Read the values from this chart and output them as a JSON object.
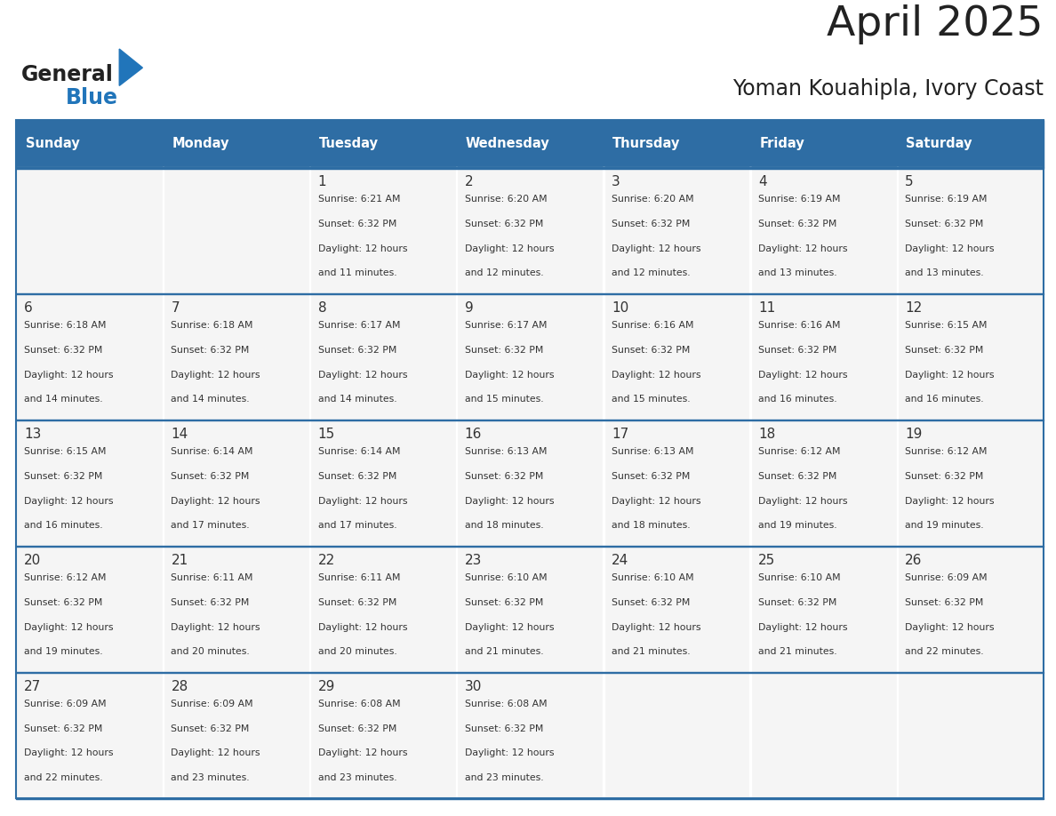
{
  "title": "April 2025",
  "subtitle": "Yoman Kouahipla, Ivory Coast",
  "header_bg": "#2E6DA4",
  "header_text_color": "#FFFFFF",
  "cell_bg": "#F5F5F5",
  "cell_bg_white": "#FFFFFF",
  "row_separator_color": "#2E6DA4",
  "border_color": "#2E6DA4",
  "text_color": "#333333",
  "day_names": [
    "Sunday",
    "Monday",
    "Tuesday",
    "Wednesday",
    "Thursday",
    "Friday",
    "Saturday"
  ],
  "logo_text_color": "#222222",
  "logo_blue_color": "#2175BA",
  "title_color": "#222222",
  "calendar": [
    [
      {
        "day": "",
        "sunrise": "",
        "sunset": "",
        "daylight": ""
      },
      {
        "day": "",
        "sunrise": "",
        "sunset": "",
        "daylight": ""
      },
      {
        "day": "1",
        "sunrise": "6:21 AM",
        "sunset": "6:32 PM",
        "daylight": "12 hours and 11 minutes."
      },
      {
        "day": "2",
        "sunrise": "6:20 AM",
        "sunset": "6:32 PM",
        "daylight": "12 hours and 12 minutes."
      },
      {
        "day": "3",
        "sunrise": "6:20 AM",
        "sunset": "6:32 PM",
        "daylight": "12 hours and 12 minutes."
      },
      {
        "day": "4",
        "sunrise": "6:19 AM",
        "sunset": "6:32 PM",
        "daylight": "12 hours and 13 minutes."
      },
      {
        "day": "5",
        "sunrise": "6:19 AM",
        "sunset": "6:32 PM",
        "daylight": "12 hours and 13 minutes."
      }
    ],
    [
      {
        "day": "6",
        "sunrise": "6:18 AM",
        "sunset": "6:32 PM",
        "daylight": "12 hours and 14 minutes."
      },
      {
        "day": "7",
        "sunrise": "6:18 AM",
        "sunset": "6:32 PM",
        "daylight": "12 hours and 14 minutes."
      },
      {
        "day": "8",
        "sunrise": "6:17 AM",
        "sunset": "6:32 PM",
        "daylight": "12 hours and 14 minutes."
      },
      {
        "day": "9",
        "sunrise": "6:17 AM",
        "sunset": "6:32 PM",
        "daylight": "12 hours and 15 minutes."
      },
      {
        "day": "10",
        "sunrise": "6:16 AM",
        "sunset": "6:32 PM",
        "daylight": "12 hours and 15 minutes."
      },
      {
        "day": "11",
        "sunrise": "6:16 AM",
        "sunset": "6:32 PM",
        "daylight": "12 hours and 16 minutes."
      },
      {
        "day": "12",
        "sunrise": "6:15 AM",
        "sunset": "6:32 PM",
        "daylight": "12 hours and 16 minutes."
      }
    ],
    [
      {
        "day": "13",
        "sunrise": "6:15 AM",
        "sunset": "6:32 PM",
        "daylight": "12 hours and 16 minutes."
      },
      {
        "day": "14",
        "sunrise": "6:14 AM",
        "sunset": "6:32 PM",
        "daylight": "12 hours and 17 minutes."
      },
      {
        "day": "15",
        "sunrise": "6:14 AM",
        "sunset": "6:32 PM",
        "daylight": "12 hours and 17 minutes."
      },
      {
        "day": "16",
        "sunrise": "6:13 AM",
        "sunset": "6:32 PM",
        "daylight": "12 hours and 18 minutes."
      },
      {
        "day": "17",
        "sunrise": "6:13 AM",
        "sunset": "6:32 PM",
        "daylight": "12 hours and 18 minutes."
      },
      {
        "day": "18",
        "sunrise": "6:12 AM",
        "sunset": "6:32 PM",
        "daylight": "12 hours and 19 minutes."
      },
      {
        "day": "19",
        "sunrise": "6:12 AM",
        "sunset": "6:32 PM",
        "daylight": "12 hours and 19 minutes."
      }
    ],
    [
      {
        "day": "20",
        "sunrise": "6:12 AM",
        "sunset": "6:32 PM",
        "daylight": "12 hours and 19 minutes."
      },
      {
        "day": "21",
        "sunrise": "6:11 AM",
        "sunset": "6:32 PM",
        "daylight": "12 hours and 20 minutes."
      },
      {
        "day": "22",
        "sunrise": "6:11 AM",
        "sunset": "6:32 PM",
        "daylight": "12 hours and 20 minutes."
      },
      {
        "day": "23",
        "sunrise": "6:10 AM",
        "sunset": "6:32 PM",
        "daylight": "12 hours and 21 minutes."
      },
      {
        "day": "24",
        "sunrise": "6:10 AM",
        "sunset": "6:32 PM",
        "daylight": "12 hours and 21 minutes."
      },
      {
        "day": "25",
        "sunrise": "6:10 AM",
        "sunset": "6:32 PM",
        "daylight": "12 hours and 21 minutes."
      },
      {
        "day": "26",
        "sunrise": "6:09 AM",
        "sunset": "6:32 PM",
        "daylight": "12 hours and 22 minutes."
      }
    ],
    [
      {
        "day": "27",
        "sunrise": "6:09 AM",
        "sunset": "6:32 PM",
        "daylight": "12 hours and 22 minutes."
      },
      {
        "day": "28",
        "sunrise": "6:09 AM",
        "sunset": "6:32 PM",
        "daylight": "12 hours and 23 minutes."
      },
      {
        "day": "29",
        "sunrise": "6:08 AM",
        "sunset": "6:32 PM",
        "daylight": "12 hours and 23 minutes."
      },
      {
        "day": "30",
        "sunrise": "6:08 AM",
        "sunset": "6:32 PM",
        "daylight": "12 hours and 23 minutes."
      },
      {
        "day": "",
        "sunrise": "",
        "sunset": "",
        "daylight": ""
      },
      {
        "day": "",
        "sunrise": "",
        "sunset": "",
        "daylight": ""
      },
      {
        "day": "",
        "sunrise": "",
        "sunset": "",
        "daylight": ""
      }
    ]
  ]
}
